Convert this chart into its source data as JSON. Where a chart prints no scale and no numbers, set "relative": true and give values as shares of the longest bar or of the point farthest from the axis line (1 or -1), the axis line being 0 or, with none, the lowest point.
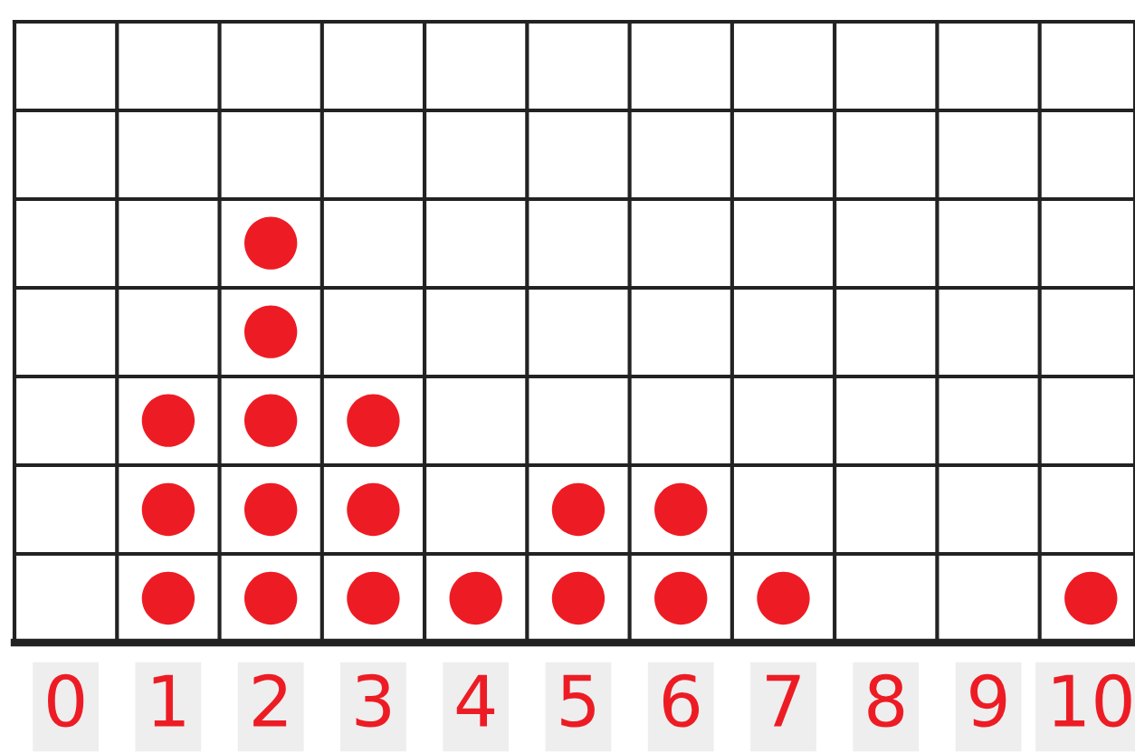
{
  "chart_data": {
    "type": "scatter",
    "x": [
      1,
      1,
      1,
      2,
      2,
      2,
      2,
      2,
      3,
      3,
      3,
      4,
      5,
      5,
      6,
      6,
      7,
      10
    ],
    "values": [
      0.111,
      0.333,
      0.556,
      0.111,
      0.333,
      0.556,
      0.778,
      1,
      0.111,
      0.333,
      0.556,
      0.111,
      0.111,
      0.333,
      0.111,
      0.333,
      0.111,
      0.111
    ],
    "relative": true,
    "color": "#ed1c24",
    "marker": "circle",
    "xlim": [
      -0.5,
      10.43
    ],
    "xticks": [
      0,
      1,
      2,
      3,
      4,
      5,
      6,
      7,
      8,
      9,
      10
    ],
    "grid": true,
    "tick_labels": "x"
  }
}
